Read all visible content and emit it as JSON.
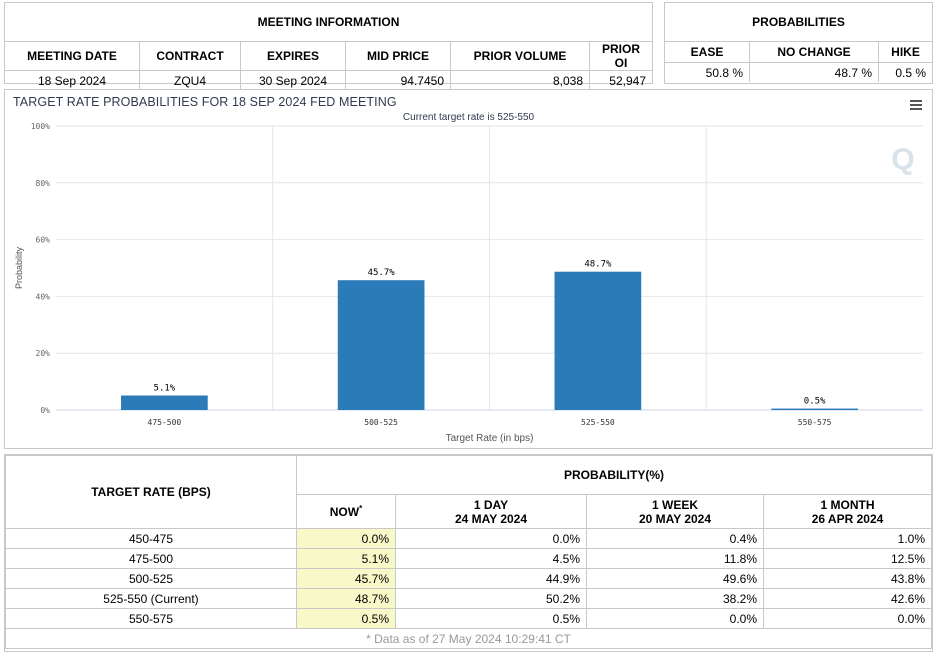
{
  "meeting": {
    "title": "MEETING INFORMATION",
    "columns": [
      "MEETING DATE",
      "CONTRACT",
      "EXPIRES",
      "MID PRICE",
      "PRIOR VOLUME",
      "PRIOR OI"
    ],
    "values": [
      "18 Sep 2024",
      "ZQU4",
      "30 Sep 2024",
      "94.7450",
      "8,038",
      "52,947"
    ]
  },
  "probabilities": {
    "title": "PROBABILITIES",
    "columns": [
      "EASE",
      "NO CHANGE",
      "HIKE"
    ],
    "values": [
      "50.8 %",
      "48.7 %",
      "0.5 %"
    ]
  },
  "chart": {
    "title": "TARGET RATE PROBABILITIES FOR 18 SEP 2024 FED MEETING",
    "subtitle": "Current target rate is 525-550",
    "bar_color": "#2b7bb9"
  },
  "chart_data": {
    "type": "bar",
    "categories": [
      "475-500",
      "500-525",
      "525-550",
      "550-575"
    ],
    "values": [
      5.1,
      45.7,
      48.7,
      0.5
    ],
    "data_labels": [
      "5.1%",
      "45.7%",
      "48.7%",
      "0.5%"
    ],
    "title": "TARGET RATE PROBABILITIES FOR 18 SEP 2024 FED MEETING",
    "subtitle": "Current target rate is 525-550",
    "xlabel": "Target Rate (in bps)",
    "ylabel": "Probability",
    "ylim": [
      0,
      100
    ],
    "yticks": [
      "0%",
      "20%",
      "40%",
      "60%",
      "80%",
      "100%"
    ],
    "ytick_values": [
      0,
      20,
      40,
      60,
      80,
      100
    ],
    "grid": true,
    "legend": "none"
  },
  "bottom": {
    "rate_header": "TARGET RATE (BPS)",
    "prob_header": "PROBABILITY(%)",
    "now_label": "NOW",
    "now_mark": "*",
    "col_1day": [
      "1 DAY",
      "24 MAY 2024"
    ],
    "col_1week": [
      "1 WEEK",
      "20 MAY 2024"
    ],
    "col_1month": [
      "1 MONTH",
      "26 APR 2024"
    ],
    "rows": [
      {
        "rate": "450-475",
        "now": "0.0%",
        "day": "0.0%",
        "week": "0.4%",
        "month": "1.0%"
      },
      {
        "rate": "475-500",
        "now": "5.1%",
        "day": "4.5%",
        "week": "11.8%",
        "month": "12.5%"
      },
      {
        "rate": "500-525",
        "now": "45.7%",
        "day": "44.9%",
        "week": "49.6%",
        "month": "43.8%"
      },
      {
        "rate": "525-550 (Current)",
        "now": "48.7%",
        "day": "50.2%",
        "week": "38.2%",
        "month": "42.6%"
      },
      {
        "rate": "550-575",
        "now": "0.5%",
        "day": "0.5%",
        "week": "0.0%",
        "month": "0.0%"
      }
    ],
    "footnote": "* Data as of 27 May 2024 10:29:41 CT"
  }
}
